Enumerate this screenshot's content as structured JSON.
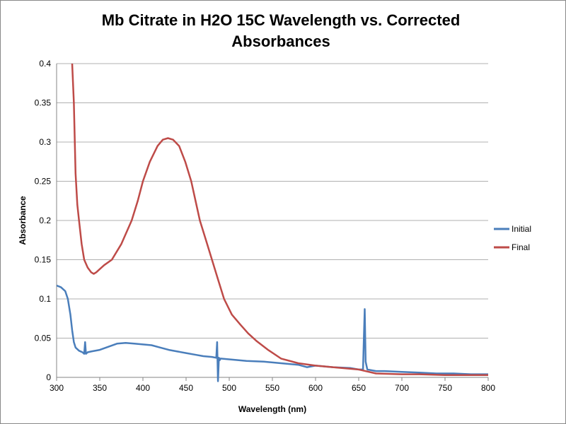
{
  "chart_data": {
    "type": "line",
    "title": [
      "Mb Citrate in H2O 15C Wavelength vs. Corrected",
      "Absorbances"
    ],
    "xlabel": "Wavelength (nm)",
    "ylabel": "Absorbance",
    "xlim": [
      300,
      800
    ],
    "ylim": [
      0,
      0.4
    ],
    "xticks": [
      300,
      350,
      400,
      450,
      500,
      550,
      600,
      650,
      700,
      750,
      800
    ],
    "xtick_labels": [
      "300",
      "350",
      "400",
      "450",
      "500",
      "550",
      "600",
      "650",
      "700",
      "750",
      "800"
    ],
    "yticks": [
      0,
      0.05,
      0.1,
      0.15,
      0.2,
      0.25,
      0.3,
      0.35,
      0.4
    ],
    "ytick_labels": [
      "0",
      "0.05",
      "0.1",
      "0.15",
      "0.2",
      "0.25",
      "0.3",
      "0.35",
      "0.4"
    ],
    "grid": "horizontal",
    "legend_position": "right",
    "series": [
      {
        "name": "Initial",
        "color": "#4a7ebb",
        "x": [
          300,
          305,
          310,
          313,
          316,
          318,
          320,
          322,
          326,
          330,
          332,
          333,
          334,
          336,
          340,
          350,
          360,
          370,
          380,
          390,
          400,
          410,
          420,
          430,
          440,
          450,
          460,
          470,
          480,
          485,
          486,
          487,
          488,
          489,
          490,
          500,
          520,
          540,
          560,
          580,
          590,
          600,
          620,
          640,
          650,
          655,
          656,
          657,
          658,
          660,
          670,
          680,
          700,
          720,
          740,
          760,
          780,
          800
        ],
        "y": [
          0.117,
          0.115,
          0.11,
          0.1,
          0.08,
          0.06,
          0.045,
          0.038,
          0.034,
          0.032,
          0.03,
          0.045,
          0.03,
          0.032,
          0.033,
          0.035,
          0.039,
          0.043,
          0.044,
          0.043,
          0.042,
          0.041,
          0.038,
          0.035,
          0.033,
          0.031,
          0.029,
          0.027,
          0.026,
          0.025,
          0.045,
          -0.005,
          0.025,
          0.022,
          0.024,
          0.023,
          0.021,
          0.02,
          0.018,
          0.016,
          0.013,
          0.015,
          0.013,
          0.012,
          0.01,
          0.01,
          0.05,
          0.087,
          0.02,
          0.01,
          0.008,
          0.008,
          0.007,
          0.006,
          0.005,
          0.005,
          0.004,
          0.004
        ]
      },
      {
        "name": "Final",
        "color": "#be4b48",
        "x": [
          318,
          320,
          322,
          324,
          326,
          329,
          332,
          336,
          340,
          343,
          346,
          350,
          355,
          364,
          375,
          387,
          394,
          400,
          408,
          417,
          423,
          429,
          435,
          442,
          449,
          456,
          461,
          466,
          473,
          480,
          487,
          494,
          503,
          513,
          522,
          532,
          545,
          560,
          580,
          600,
          620,
          650,
          670,
          700,
          720,
          750,
          780,
          800
        ],
        "y": [
          0.4,
          0.35,
          0.26,
          0.22,
          0.2,
          0.17,
          0.15,
          0.14,
          0.134,
          0.132,
          0.134,
          0.138,
          0.143,
          0.15,
          0.17,
          0.2,
          0.225,
          0.25,
          0.275,
          0.295,
          0.303,
          0.305,
          0.303,
          0.295,
          0.275,
          0.25,
          0.225,
          0.2,
          0.175,
          0.15,
          0.125,
          0.1,
          0.08,
          0.067,
          0.056,
          0.046,
          0.035,
          0.024,
          0.018,
          0.015,
          0.013,
          0.01,
          0.005,
          0.004,
          0.004,
          0.003,
          0.003,
          0.003
        ]
      }
    ]
  }
}
